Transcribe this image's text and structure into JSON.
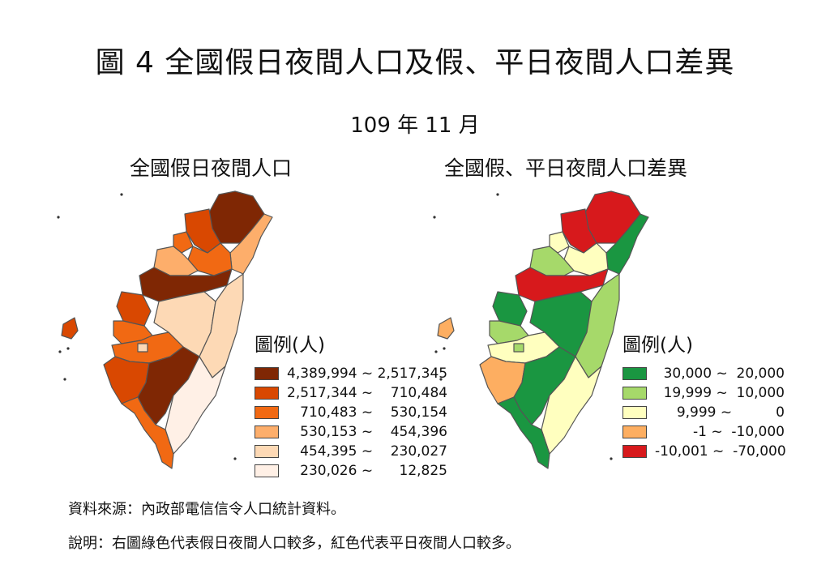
{
  "title": "圖 4  全國假日夜間人口及假、平日夜間人口差異",
  "subtitle": "109 年 11 月",
  "left_map": {
    "title": "全國假日夜間人口",
    "legend_title": "圖例(人)",
    "legend": [
      {
        "label": "4,389,994 ~ 2,517,345",
        "color": "#7f2704"
      },
      {
        "label": "2,517,344 ~    710,484",
        "color": "#d94801"
      },
      {
        "label": "710,483 ~    530,154",
        "color": "#f16913"
      },
      {
        "label": "530,153 ~    454,396",
        "color": "#fdae6b"
      },
      {
        "label": "454,395 ~    230,027",
        "color": "#fdd9b5"
      },
      {
        "label": "230,026 ~      12,825",
        "color": "#fff0e6"
      }
    ]
  },
  "right_map": {
    "title": "全國假、平日夜間人口差異",
    "legend_title": "圖例(人)",
    "legend": [
      {
        "label": "30,000 ~  20,000",
        "color": "#1a9641"
      },
      {
        "label": "19,999 ~  10,000",
        "color": "#a6d96a"
      },
      {
        "label": "9,999 ~          0",
        "color": "#ffffbf"
      },
      {
        "label": "-1 ~  -10,000",
        "color": "#fdae61"
      },
      {
        "label": "-10,001 ~  -70,000",
        "color": "#d7191c"
      }
    ]
  },
  "source": "資料來源：內政部電信信令人口統計資料。",
  "note": "說明：右圖綠色代表假日夜間人口較多，紅色代表平日夜間人口較多。"
}
